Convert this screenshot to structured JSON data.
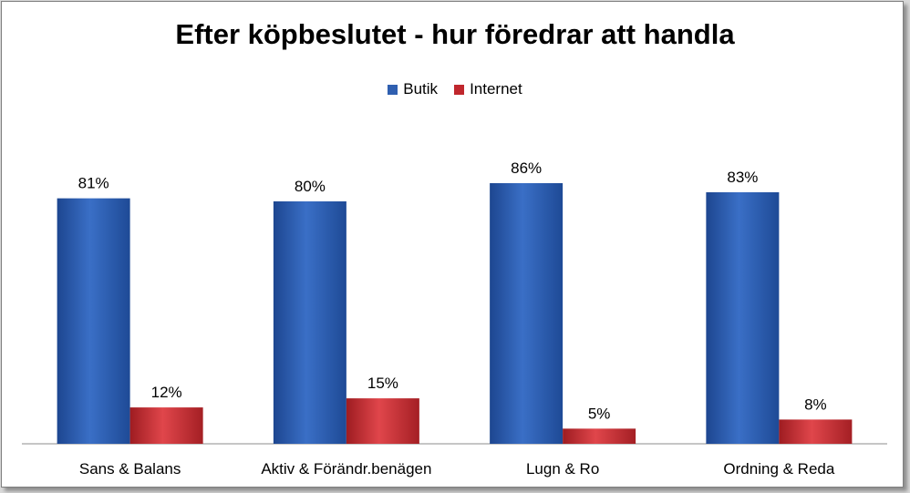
{
  "chart_data": {
    "type": "bar",
    "title": "Efter köpbeslutet - hur föredrar att handla",
    "categories": [
      "Sans & Balans",
      "Aktiv & Förändr.benägen",
      "Lugn & Ro",
      "Ordning & Reda"
    ],
    "series": [
      {
        "name": "Butik",
        "values": [
          81,
          80,
          86,
          83
        ],
        "labels": [
          "81%",
          "80%",
          "86%",
          "83%"
        ],
        "color": "#2f5fb0"
      },
      {
        "name": "Internet",
        "values": [
          12,
          15,
          5,
          8
        ],
        "labels": [
          "12%",
          "15%",
          "5%",
          "8%"
        ],
        "color": "#c0272d"
      }
    ],
    "ylim": [
      0,
      100
    ],
    "grid": false,
    "legend_position": "top"
  }
}
